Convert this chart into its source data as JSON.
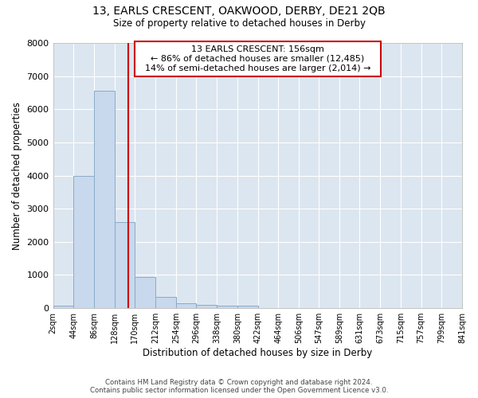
{
  "title": "13, EARLS CRESCENT, OAKWOOD, DERBY, DE21 2QB",
  "subtitle": "Size of property relative to detached houses in Derby",
  "xlabel": "Distribution of detached houses by size in Derby",
  "ylabel": "Number of detached properties",
  "footer_line1": "Contains HM Land Registry data © Crown copyright and database right 2024.",
  "footer_line2": "Contains public sector information licensed under the Open Government Licence v3.0.",
  "bins": [
    2,
    44,
    86,
    128,
    170,
    212,
    254,
    296,
    338,
    380,
    422,
    464,
    506,
    547,
    589,
    631,
    673,
    715,
    757,
    799,
    841
  ],
  "values": [
    80,
    4000,
    6550,
    2600,
    950,
    330,
    150,
    100,
    80,
    70,
    0,
    0,
    0,
    0,
    0,
    0,
    0,
    0,
    0,
    0
  ],
  "bar_color": "#c8d8ed",
  "bar_edge_color": "#8aaac8",
  "property_size": 156,
  "vline_color": "#cc0000",
  "annotation_box_color": "#cc0000",
  "annotation_text_line1": "13 EARLS CRESCENT: 156sqm",
  "annotation_text_line2": "← 86% of detached houses are smaller (12,485)",
  "annotation_text_line3": "14% of semi-detached houses are larger (2,014) →",
  "bg_color": "#dce6f0",
  "ylim": [
    0,
    8000
  ],
  "yticks": [
    0,
    1000,
    2000,
    3000,
    4000,
    5000,
    6000,
    7000,
    8000
  ]
}
